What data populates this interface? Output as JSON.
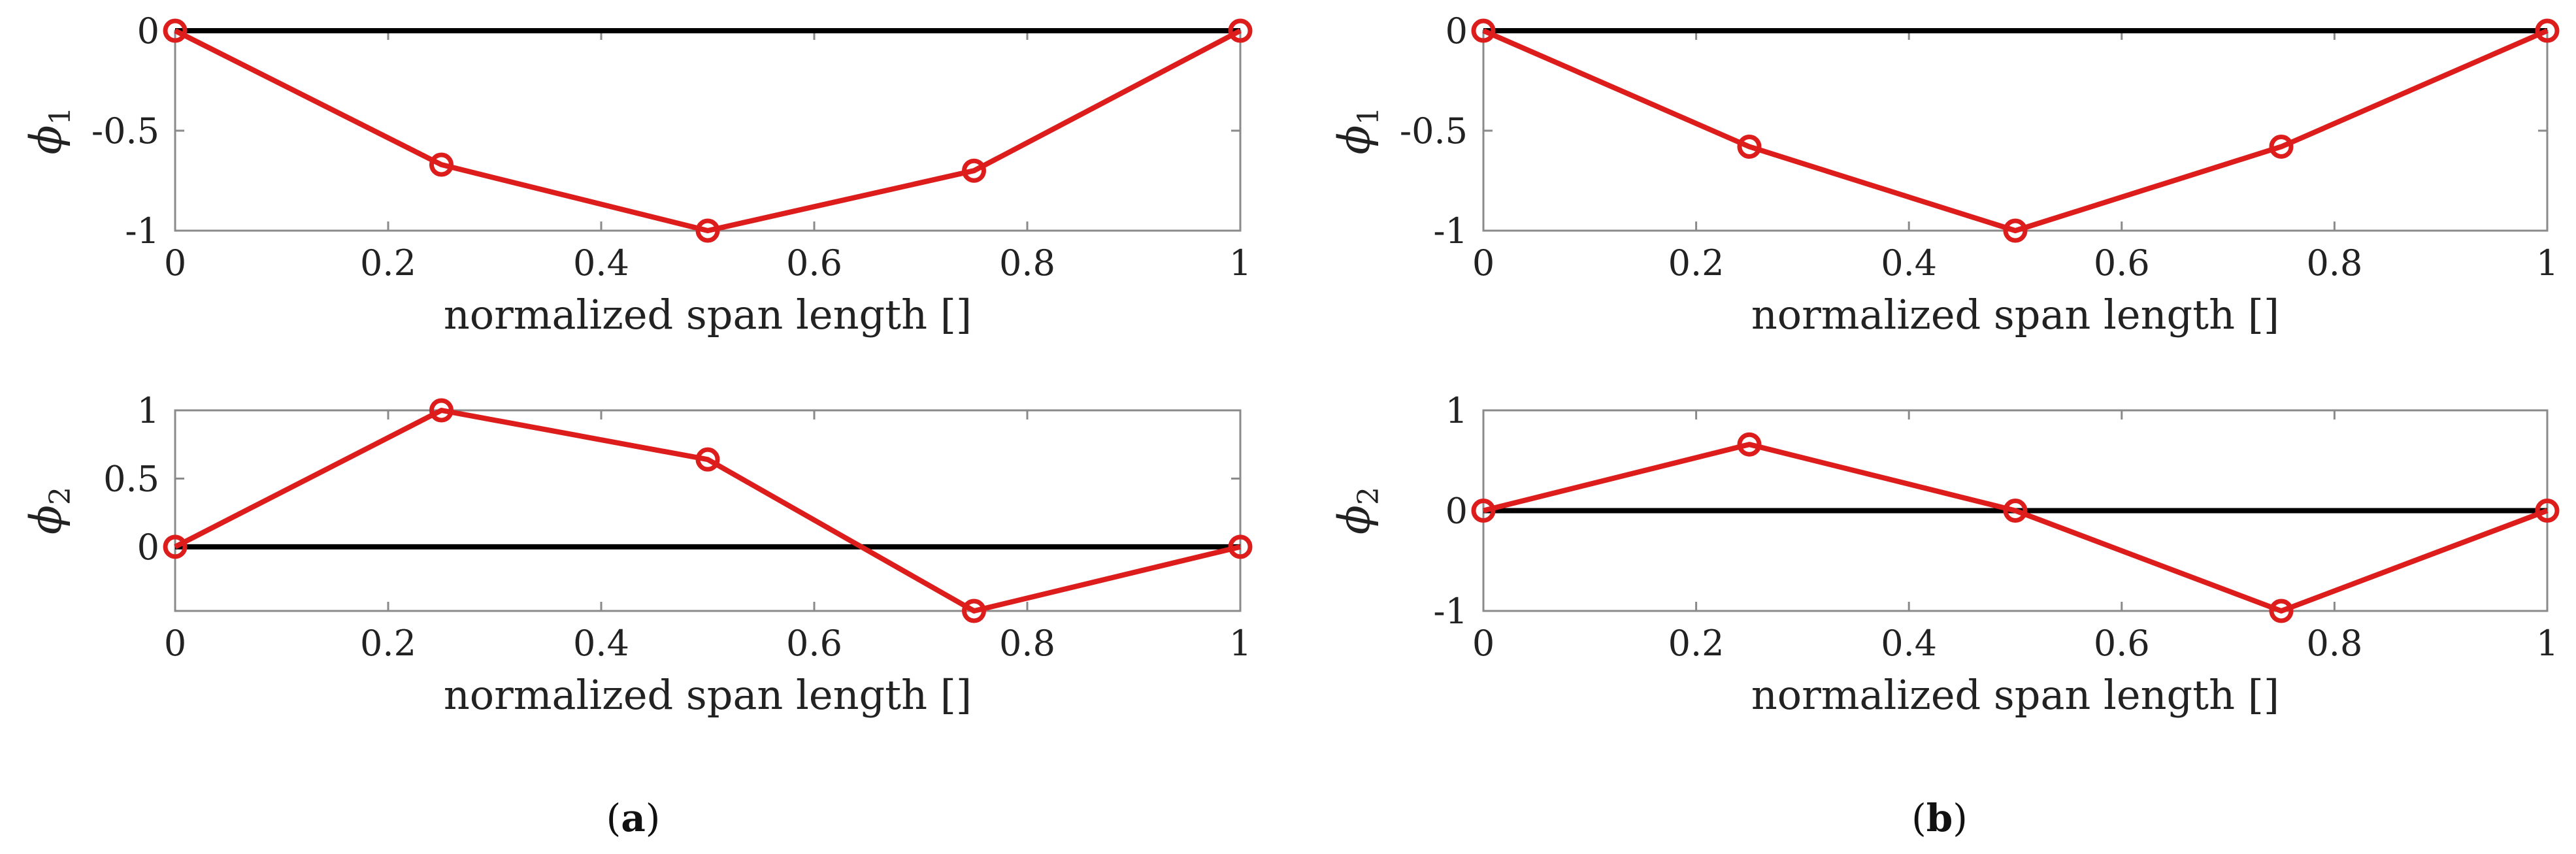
{
  "chart_data": [
    {
      "type": "line",
      "panel": "a",
      "ylabel": "ϕ",
      "ylabel_sub": "1",
      "xlabel": "normalized span length []",
      "x": [
        0,
        0.25,
        0.5,
        0.75,
        1
      ],
      "y": [
        0,
        -0.67,
        -1,
        -0.7,
        0
      ],
      "xlim": [
        0,
        1
      ],
      "ylim": [
        -1,
        0
      ],
      "xticks": [
        "0",
        "0.2",
        "0.4",
        "0.6",
        "0.8",
        "1"
      ],
      "xtick_values": [
        0,
        0.2,
        0.4,
        0.6,
        0.8,
        1
      ],
      "yticks": [
        "0",
        "-0.5",
        "-1"
      ],
      "ytick_values": [
        0,
        -0.5,
        -1
      ],
      "zero_line": 0,
      "grid": false
    },
    {
      "type": "line",
      "panel": "a",
      "ylabel": "ϕ",
      "ylabel_sub": "2",
      "xlabel": "normalized span length []",
      "x": [
        0,
        0.25,
        0.5,
        0.75,
        1
      ],
      "y": [
        0,
        1,
        0.64,
        -0.47,
        0
      ],
      "xlim": [
        0,
        1
      ],
      "ylim": [
        -0.47,
        1
      ],
      "xticks": [
        "0",
        "0.2",
        "0.4",
        "0.6",
        "0.8",
        "1"
      ],
      "xtick_values": [
        0,
        0.2,
        0.4,
        0.6,
        0.8,
        1
      ],
      "yticks": [
        "1",
        "0.5",
        "0"
      ],
      "ytick_values": [
        1,
        0.5,
        0
      ],
      "zero_line": 0,
      "grid": false
    },
    {
      "type": "line",
      "panel": "b",
      "ylabel": "ϕ",
      "ylabel_sub": "1",
      "xlabel": "normalized span length []",
      "x": [
        0,
        0.25,
        0.5,
        0.75,
        1
      ],
      "y": [
        0,
        -0.58,
        -1,
        -0.58,
        0
      ],
      "xlim": [
        0,
        1
      ],
      "ylim": [
        -1,
        0
      ],
      "xticks": [
        "0",
        "0.2",
        "0.4",
        "0.6",
        "0.8",
        "1"
      ],
      "xtick_values": [
        0,
        0.2,
        0.4,
        0.6,
        0.8,
        1
      ],
      "yticks": [
        "0",
        "-0.5",
        "-1"
      ],
      "ytick_values": [
        0,
        -0.5,
        -1
      ],
      "zero_line": 0,
      "grid": false
    },
    {
      "type": "line",
      "panel": "b",
      "ylabel": "ϕ",
      "ylabel_sub": "2",
      "xlabel": "normalized span length []",
      "x": [
        0,
        0.25,
        0.5,
        0.75,
        1
      ],
      "y": [
        0,
        0.66,
        0,
        -1,
        0
      ],
      "xlim": [
        0,
        1
      ],
      "ylim": [
        -1,
        1
      ],
      "xticks": [
        "0",
        "0.2",
        "0.4",
        "0.6",
        "0.8",
        "1"
      ],
      "xtick_values": [
        0,
        0.2,
        0.4,
        0.6,
        0.8,
        1
      ],
      "yticks": [
        "1",
        "0",
        "-1"
      ],
      "ytick_values": [
        1,
        0,
        -1
      ],
      "zero_line": 0,
      "grid": false
    }
  ],
  "captions": {
    "a": "a",
    "b": "b"
  },
  "colors": {
    "series": "#dd1c1c",
    "zero_line": "#000000",
    "frame": "#8a8a8a"
  }
}
